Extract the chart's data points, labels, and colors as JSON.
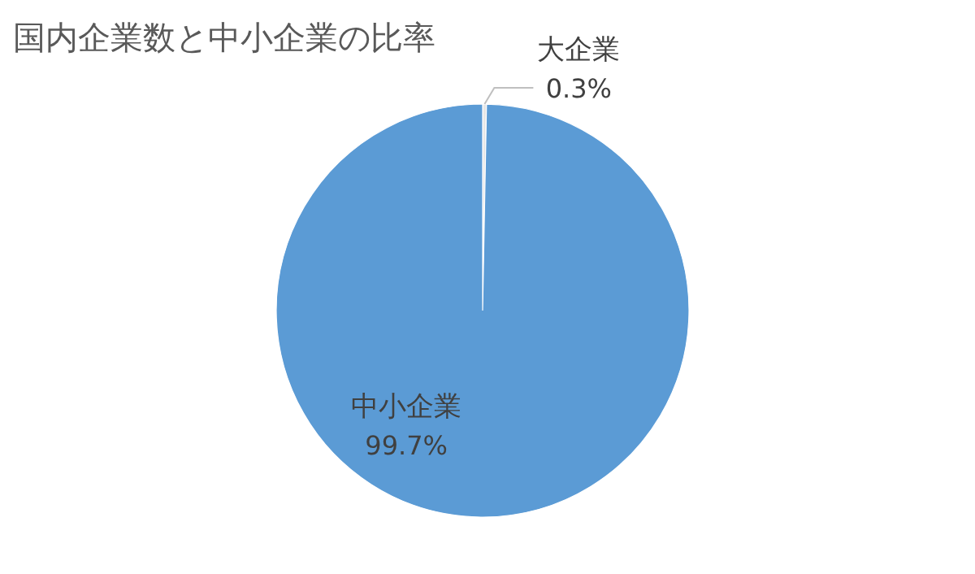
{
  "chart_data": {
    "type": "pie",
    "title": "国内企業数と中小企業の比率",
    "categories": [
      "大企業",
      "中小企業"
    ],
    "values": [
      0.3,
      99.7
    ],
    "value_labels": [
      "0.3%",
      "99.7%"
    ],
    "colors": [
      "#e6e6e6",
      "#5b9bd5"
    ],
    "legend": false
  }
}
